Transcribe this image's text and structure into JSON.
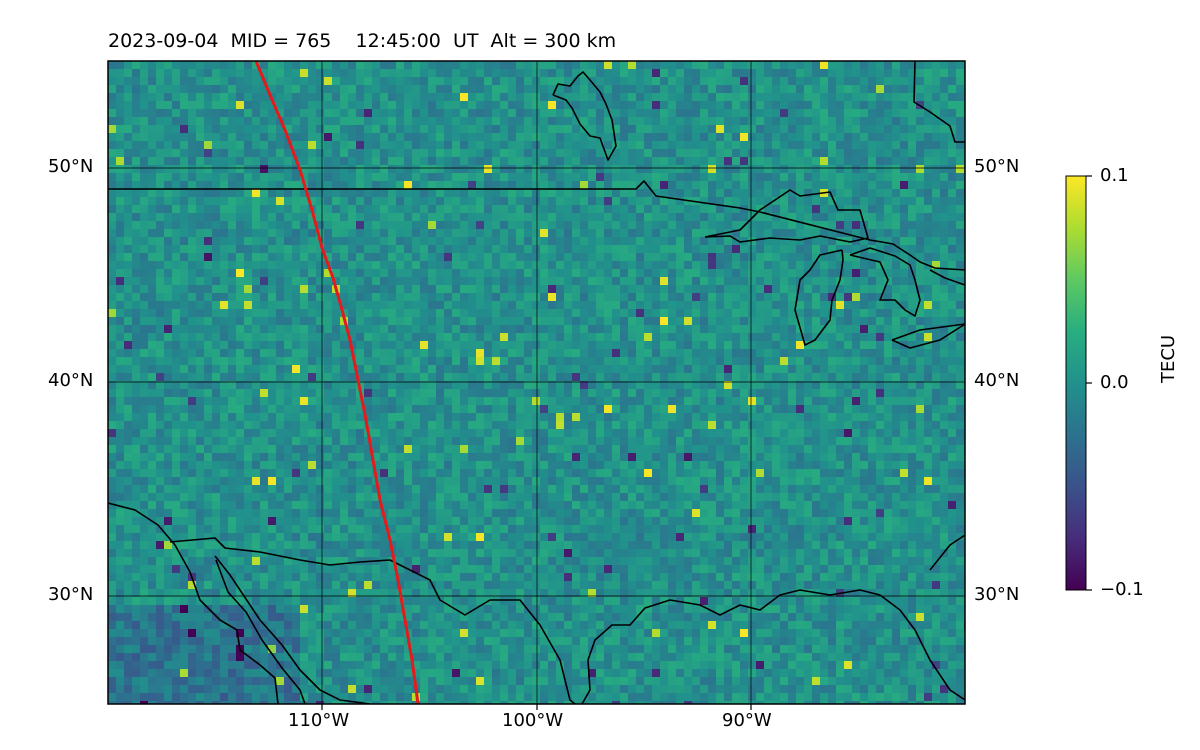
{
  "title": "2023-09-04  MID = 765    12:45:00  UT  Alt = 300 km",
  "map": {
    "lon_range": [
      -120,
      -80
    ],
    "lat_range": [
      25,
      55
    ],
    "x_ticks": [
      {
        "lon": -110,
        "label": "110°W"
      },
      {
        "lon": -100,
        "label": "100°W"
      },
      {
        "lon": -90,
        "label": "90°W"
      }
    ],
    "y_ticks": [
      {
        "lat": 50,
        "label": "50°N"
      },
      {
        "lat": 40,
        "label": "40°N"
      },
      {
        "lat": 30,
        "label": "30°N"
      }
    ],
    "gridlines": true,
    "field": "TEC perturbation",
    "track_color": "#e41a1c",
    "coastline_color": "#000000"
  },
  "colorbar": {
    "label": "TECU",
    "min": -0.1,
    "max": 0.1,
    "colormap": "viridis",
    "ticks": [
      {
        "value": 0.1,
        "label": "0.1"
      },
      {
        "value": 0.0,
        "label": "0.0"
      },
      {
        "value": -0.1,
        "label": "−0.1"
      }
    ]
  }
}
